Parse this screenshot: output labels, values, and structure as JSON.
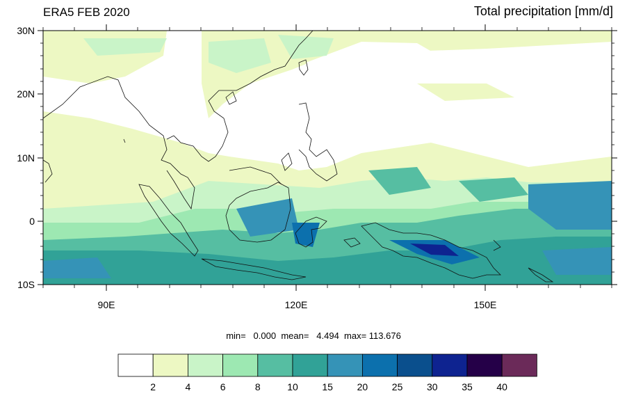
{
  "header": {
    "title_left": "ERA5 FEB 2020",
    "title_right": "Total precipitation [mm/d]"
  },
  "axes": {
    "lat_ticks": [
      {
        "label": "30N",
        "value": 30
      },
      {
        "label": "20N",
        "value": 20
      },
      {
        "label": "10N",
        "value": 10
      },
      {
        "label": "0",
        "value": 0
      },
      {
        "label": "10S",
        "value": -10
      }
    ],
    "lon_ticks": [
      {
        "label": "90E",
        "value": 90
      },
      {
        "label": "120E",
        "value": 120
      },
      {
        "label": "150E",
        "value": 150
      }
    ],
    "lon_range": [
      80,
      170
    ],
    "lat_range": [
      -10,
      30
    ]
  },
  "stats": {
    "text": "min=   0.000  mean=   4.494  max= 113.676"
  },
  "colorbar": {
    "colors": [
      "#ffffff",
      "#edf8c3",
      "#c9f4c8",
      "#9de8b2",
      "#56bea2",
      "#31a297",
      "#3593b7",
      "#0c70ad",
      "#0a4f8d",
      "#0e2390",
      "#250048",
      "#6b2a59"
    ],
    "labels": [
      "2",
      "4",
      "6",
      "8",
      "10",
      "15",
      "20",
      "25",
      "30",
      "35",
      "40"
    ]
  }
}
